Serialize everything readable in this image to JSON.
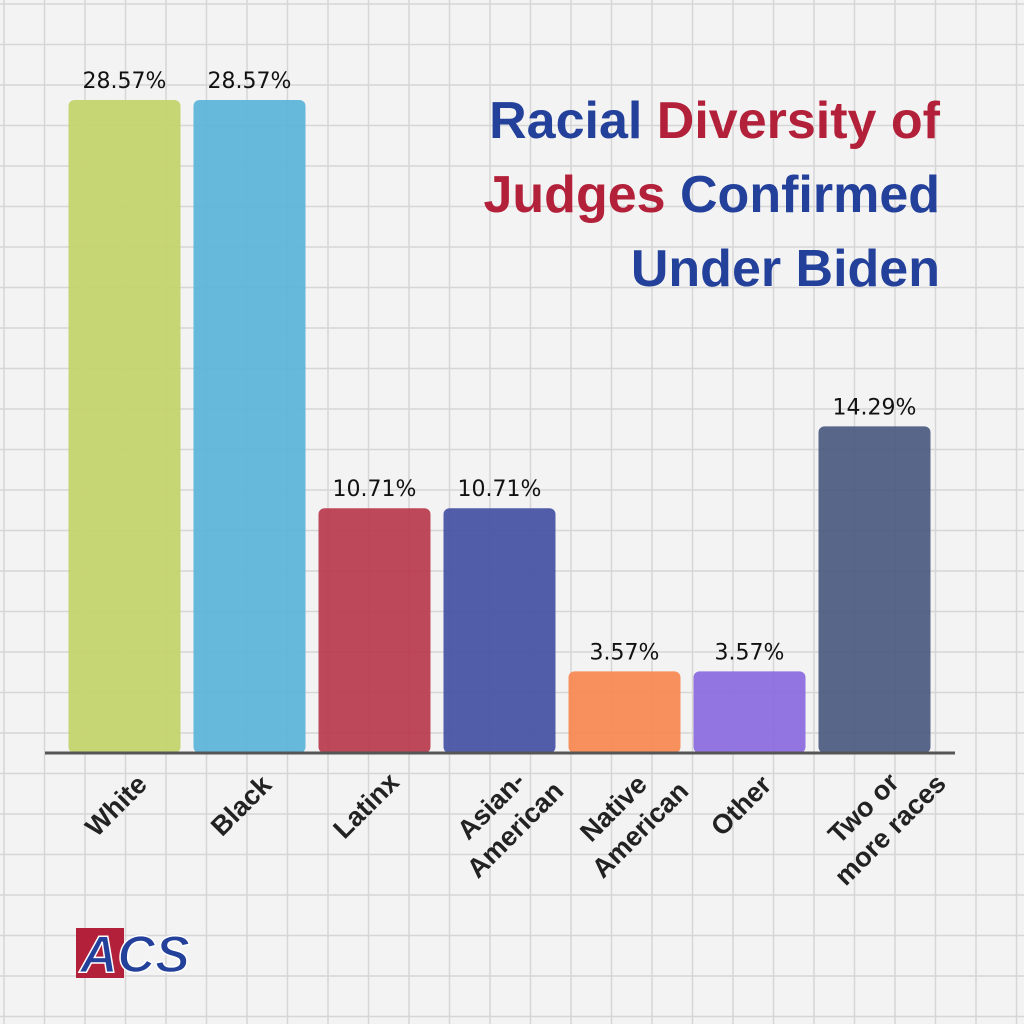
{
  "chart_data": {
    "type": "bar",
    "title_lines": [
      [
        {
          "text": "Racial",
          "color": "#23409a"
        },
        {
          "text": "Diversity of",
          "color": "#b3203a"
        }
      ],
      [
        {
          "text": "Judges",
          "color": "#b3203a"
        },
        {
          "text": "Confirmed",
          "color": "#23409a"
        }
      ],
      [
        {
          "text": "Under Biden",
          "color": "#23409a"
        }
      ]
    ],
    "categories": [
      "White",
      "Black",
      "Latinx",
      "Asian-American",
      "Native American",
      "Other",
      "Two or more races"
    ],
    "values": [
      28.57,
      28.57,
      10.71,
      10.71,
      3.57,
      3.57,
      14.29
    ],
    "value_labels": [
      "28.57%",
      "28.57%",
      "10.71%",
      "10.71%",
      "3.57%",
      "3.57%",
      "14.29%"
    ],
    "colors": [
      "#c3d46a",
      "#5ab4d9",
      "#b93a4c",
      "#4450a3",
      "#f98850",
      "#8a6ae0",
      "#4a5a80"
    ],
    "logo": "ACS"
  }
}
